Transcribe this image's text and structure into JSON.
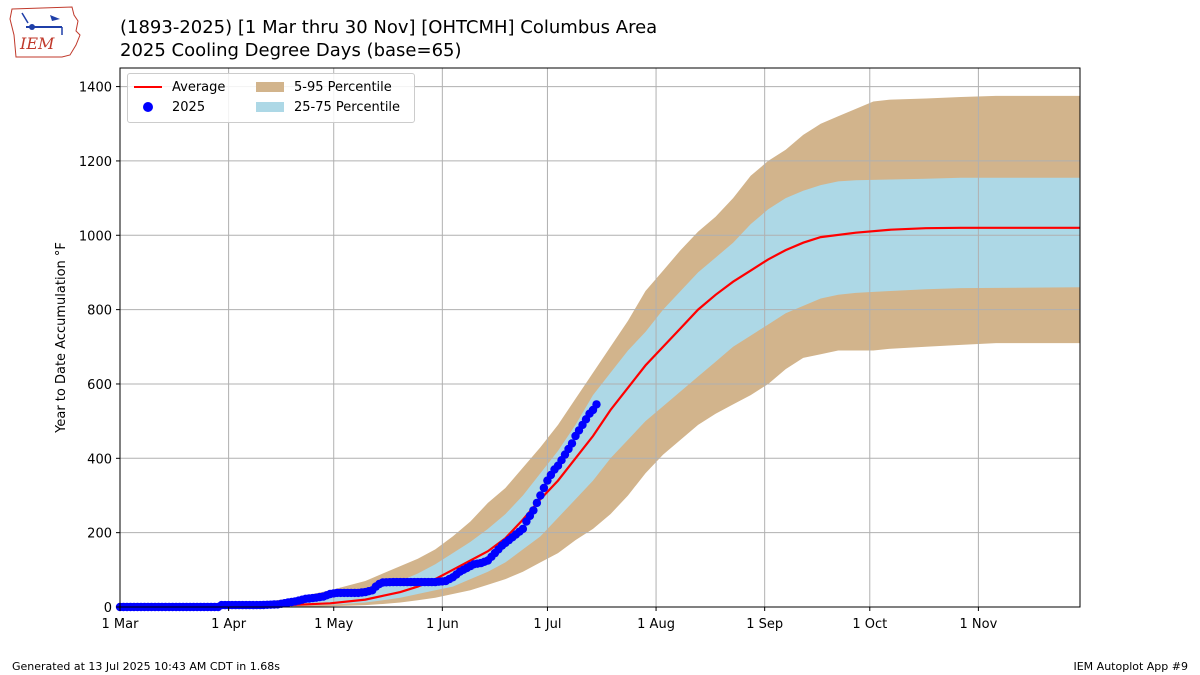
{
  "header": {
    "title_line1": "(1893-2025) [1 Mar thru 30 Nov] [OHTCMH] Columbus Area",
    "title_line2": "2025 Cooling Degree Days (base=65)",
    "logo_text": "IEM"
  },
  "footer": {
    "left": "Generated at 13 Jul 2025 10:43 AM CDT in 1.68s",
    "right": "IEM Autoplot App #9"
  },
  "colors": {
    "average": "#ff0000",
    "observed": "#0000ff",
    "p5_95": "#d2b48c",
    "p25_75": "#add8e6",
    "grid": "#b0b0b0"
  },
  "chart_data": {
    "type": "line",
    "title": "(1893-2025) [1 Mar thru 30 Nov] [OHTCMH] Columbus Area",
    "subtitle": "2025 Cooling Degree Days (base=65)",
    "xlabel": "",
    "ylabel": "Year to Date Accumulation °F",
    "x_unit": "day of season (0 = 1 Mar)",
    "xlim": [
      0,
      274
    ],
    "ylim": [
      0,
      1450
    ],
    "yticks": [
      0,
      200,
      400,
      600,
      800,
      1000,
      1200,
      1400
    ],
    "xticks": [
      {
        "label": "1 Mar",
        "day": 0
      },
      {
        "label": "1 Apr",
        "day": 31
      },
      {
        "label": "1 May",
        "day": 61
      },
      {
        "label": "1 Jun",
        "day": 92
      },
      {
        "label": "1 Jul",
        "day": 122
      },
      {
        "label": "1 Aug",
        "day": 153
      },
      {
        "label": "1 Sep",
        "day": 184
      },
      {
        "label": "1 Oct",
        "day": 214
      },
      {
        "label": "1 Nov",
        "day": 245
      }
    ],
    "grid": true,
    "legend_position": "top-left",
    "legend": [
      {
        "key": "average",
        "label": "Average",
        "kind": "line"
      },
      {
        "key": "observed",
        "label": "2025",
        "kind": "dot"
      },
      {
        "key": "p5_95",
        "label": "5-95 Percentile",
        "kind": "box"
      },
      {
        "key": "p25_75",
        "label": "25-75 Percentile",
        "kind": "box"
      }
    ],
    "average": {
      "name": "Average",
      "points": [
        [
          0,
          0
        ],
        [
          20,
          0
        ],
        [
          30,
          1
        ],
        [
          40,
          3
        ],
        [
          50,
          6
        ],
        [
          60,
          10
        ],
        [
          70,
          20
        ],
        [
          75,
          30
        ],
        [
          80,
          40
        ],
        [
          85,
          55
        ],
        [
          90,
          75
        ],
        [
          95,
          100
        ],
        [
          100,
          125
        ],
        [
          105,
          150
        ],
        [
          110,
          185
        ],
        [
          115,
          235
        ],
        [
          120,
          290
        ],
        [
          125,
          340
        ],
        [
          130,
          400
        ],
        [
          135,
          460
        ],
        [
          140,
          530
        ],
        [
          145,
          590
        ],
        [
          150,
          650
        ],
        [
          155,
          700
        ],
        [
          160,
          750
        ],
        [
          165,
          800
        ],
        [
          170,
          840
        ],
        [
          175,
          875
        ],
        [
          180,
          905
        ],
        [
          185,
          935
        ],
        [
          190,
          960
        ],
        [
          195,
          980
        ],
        [
          200,
          995
        ],
        [
          210,
          1007
        ],
        [
          220,
          1015
        ],
        [
          230,
          1019
        ],
        [
          240,
          1020
        ],
        [
          274,
          1020
        ]
      ]
    },
    "p5_95": {
      "name": "5-95 Percentile",
      "points": [
        [
          0,
          0,
          0
        ],
        [
          30,
          0,
          3
        ],
        [
          40,
          0,
          12
        ],
        [
          50,
          0,
          25
        ],
        [
          60,
          2,
          45
        ],
        [
          70,
          5,
          70
        ],
        [
          75,
          8,
          90
        ],
        [
          80,
          12,
          110
        ],
        [
          85,
          18,
          130
        ],
        [
          90,
          25,
          155
        ],
        [
          95,
          35,
          190
        ],
        [
          100,
          45,
          230
        ],
        [
          105,
          60,
          280
        ],
        [
          110,
          75,
          320
        ],
        [
          115,
          95,
          375
        ],
        [
          120,
          120,
          430
        ],
        [
          125,
          145,
          490
        ],
        [
          130,
          180,
          560
        ],
        [
          135,
          210,
          630
        ],
        [
          140,
          250,
          700
        ],
        [
          145,
          300,
          770
        ],
        [
          150,
          360,
          850
        ],
        [
          155,
          410,
          905
        ],
        [
          160,
          450,
          960
        ],
        [
          165,
          490,
          1010
        ],
        [
          170,
          520,
          1050
        ],
        [
          175,
          545,
          1100
        ],
        [
          180,
          570,
          1160
        ],
        [
          185,
          600,
          1200
        ],
        [
          190,
          640,
          1230
        ],
        [
          195,
          670,
          1270
        ],
        [
          200,
          680,
          1300
        ],
        [
          205,
          690,
          1320
        ],
        [
          210,
          690,
          1340
        ],
        [
          215,
          690,
          1360
        ],
        [
          220,
          695,
          1365
        ],
        [
          230,
          700,
          1368
        ],
        [
          240,
          705,
          1372
        ],
        [
          250,
          710,
          1375
        ],
        [
          274,
          710,
          1375
        ]
      ]
    },
    "p25_75": {
      "name": "25-75 Percentile",
      "points": [
        [
          0,
          0,
          0
        ],
        [
          30,
          0,
          1
        ],
        [
          40,
          1,
          5
        ],
        [
          50,
          3,
          12
        ],
        [
          60,
          6,
          25
        ],
        [
          70,
          12,
          40
        ],
        [
          75,
          18,
          55
        ],
        [
          80,
          25,
          70
        ],
        [
          85,
          35,
          90
        ],
        [
          90,
          45,
          115
        ],
        [
          95,
          55,
          145
        ],
        [
          100,
          75,
          175
        ],
        [
          105,
          95,
          210
        ],
        [
          110,
          120,
          250
        ],
        [
          115,
          155,
          300
        ],
        [
          120,
          190,
          360
        ],
        [
          125,
          240,
          420
        ],
        [
          130,
          290,
          490
        ],
        [
          135,
          340,
          570
        ],
        [
          140,
          400,
          630
        ],
        [
          145,
          450,
          690
        ],
        [
          150,
          500,
          740
        ],
        [
          155,
          540,
          800
        ],
        [
          160,
          580,
          850
        ],
        [
          165,
          620,
          900
        ],
        [
          170,
          660,
          940
        ],
        [
          175,
          700,
          980
        ],
        [
          180,
          730,
          1030
        ],
        [
          185,
          760,
          1070
        ],
        [
          190,
          790,
          1100
        ],
        [
          195,
          810,
          1120
        ],
        [
          200,
          830,
          1135
        ],
        [
          205,
          840,
          1145
        ],
        [
          210,
          845,
          1148
        ],
        [
          220,
          850,
          1150
        ],
        [
          230,
          855,
          1152
        ],
        [
          240,
          858,
          1155
        ],
        [
          274,
          860,
          1155
        ]
      ]
    },
    "observed": {
      "name": "2025",
      "points": [
        [
          0,
          0
        ],
        [
          10,
          0
        ],
        [
          20,
          0
        ],
        [
          28,
          0
        ],
        [
          29,
          5
        ],
        [
          35,
          5
        ],
        [
          40,
          5
        ],
        [
          45,
          7
        ],
        [
          48,
          12
        ],
        [
          50,
          15
        ],
        [
          53,
          22
        ],
        [
          56,
          25
        ],
        [
          58,
          28
        ],
        [
          60,
          35
        ],
        [
          62,
          38
        ],
        [
          65,
          38
        ],
        [
          68,
          38
        ],
        [
          70,
          40
        ],
        [
          72,
          45
        ],
        [
          73,
          55
        ],
        [
          74,
          62
        ],
        [
          75,
          66
        ],
        [
          78,
          67
        ],
        [
          82,
          67
        ],
        [
          86,
          67
        ],
        [
          90,
          67
        ],
        [
          93,
          70
        ],
        [
          95,
          80
        ],
        [
          97,
          95
        ],
        [
          99,
          105
        ],
        [
          101,
          115
        ],
        [
          103,
          118
        ],
        [
          105,
          125
        ],
        [
          107,
          145
        ],
        [
          109,
          165
        ],
        [
          111,
          180
        ],
        [
          113,
          195
        ],
        [
          115,
          210
        ],
        [
          116,
          230
        ],
        [
          117,
          245
        ],
        [
          118,
          260
        ],
        [
          119,
          280
        ],
        [
          120,
          300
        ],
        [
          121,
          320
        ],
        [
          122,
          340
        ],
        [
          123,
          355
        ],
        [
          124,
          370
        ],
        [
          125,
          380
        ],
        [
          126,
          395
        ],
        [
          127,
          410
        ],
        [
          128,
          425
        ],
        [
          129,
          440
        ],
        [
          130,
          460
        ],
        [
          131,
          475
        ],
        [
          132,
          490
        ],
        [
          133,
          505
        ],
        [
          134,
          520
        ],
        [
          135,
          530
        ],
        [
          136,
          545
        ]
      ]
    }
  }
}
